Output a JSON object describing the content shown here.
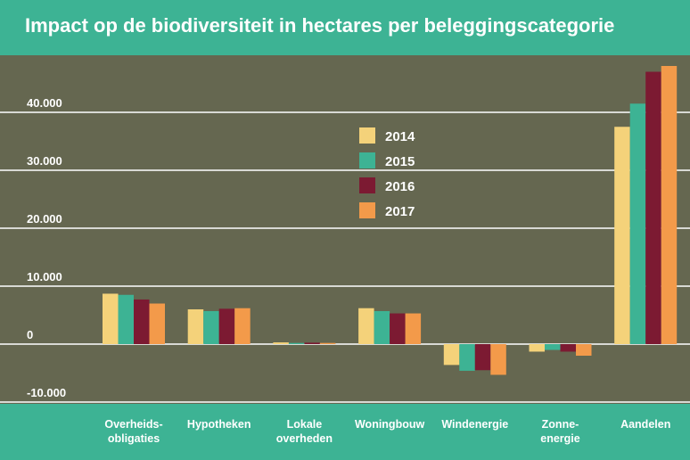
{
  "title": "Impact op de biodiversiteit in hectares per beleggingscategorie",
  "colors": {
    "background_top": "#3db394",
    "plot_background": "#656750",
    "grid": "#ffffff",
    "text": "#ffffff"
  },
  "chart_data": {
    "type": "bar",
    "title": "Impact op de biodiversiteit in hectares per beleggingscategorie",
    "categories": [
      "Overheids-obligaties",
      "Hypotheken",
      "Lokale overheden",
      "Woningbouw",
      "Windenergie",
      "Zonne-energie",
      "Aandelen"
    ],
    "category_lines": [
      [
        "Overheids-",
        "obligaties"
      ],
      [
        "Hypotheken"
      ],
      [
        "Lokale",
        "overheden"
      ],
      [
        "Woningbouw"
      ],
      [
        "Windenergie"
      ],
      [
        "Zonne-",
        "energie"
      ],
      [
        "Aandelen"
      ]
    ],
    "series": [
      {
        "name": "2014",
        "color": "#f4d27a",
        "values": [
          8700,
          6000,
          300,
          6200,
          -3600,
          -1300,
          37500
        ]
      },
      {
        "name": "2015",
        "color": "#3db394",
        "values": [
          8500,
          5700,
          200,
          5700,
          -4600,
          -1000,
          41500
        ]
      },
      {
        "name": "2016",
        "color": "#7c1a32",
        "values": [
          7700,
          6100,
          250,
          5300,
          -4500,
          -1300,
          47000
        ]
      },
      {
        "name": "2017",
        "color": "#f39a4a",
        "values": [
          7000,
          6200,
          200,
          5300,
          -5300,
          -2000,
          48000
        ]
      }
    ],
    "yticks": [
      -10000,
      0,
      10000,
      20000,
      30000,
      40000
    ],
    "ytick_labels": [
      "-10.000",
      "0",
      "10.000",
      "20.000",
      "30.000",
      "40.000"
    ],
    "ylim": [
      -10000,
      48500
    ],
    "grid": true,
    "legend_position": "top-center"
  }
}
